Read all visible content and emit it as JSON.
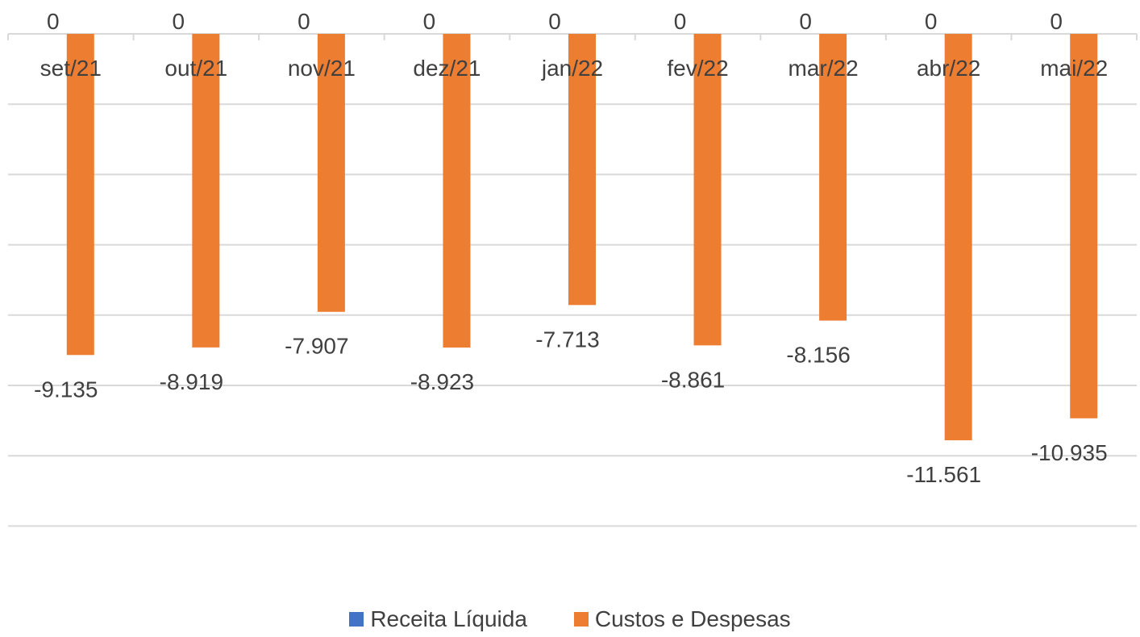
{
  "chart_data": {
    "type": "bar",
    "categories": [
      "set/21",
      "out/21",
      "nov/21",
      "dez/21",
      "jan/22",
      "fev/22",
      "mar/22",
      "abr/22",
      "mai/22"
    ],
    "series": [
      {
        "name": "Receita Líquida",
        "color": "#4472C4",
        "values": [
          0,
          0,
          0,
          0,
          0,
          0,
          0,
          0,
          0
        ],
        "data_labels": [
          "0",
          "0",
          "0",
          "0",
          "0",
          "0",
          "0",
          "0",
          "0"
        ]
      },
      {
        "name": "Custos e Despesas",
        "color": "#ED7D31",
        "values": [
          -9.135,
          -8.919,
          -7.907,
          -8.923,
          -7.713,
          -8.861,
          -8.156,
          -11.561,
          -10.935
        ],
        "data_labels": [
          "-9.135",
          "-8.919",
          "-7.907",
          "-8.923",
          "-7.713",
          "-8.861",
          "-8.156",
          "-11.561",
          "-10.935"
        ]
      }
    ],
    "ylim": [
      -14,
      0
    ],
    "grid": true,
    "legend": "bottom"
  }
}
